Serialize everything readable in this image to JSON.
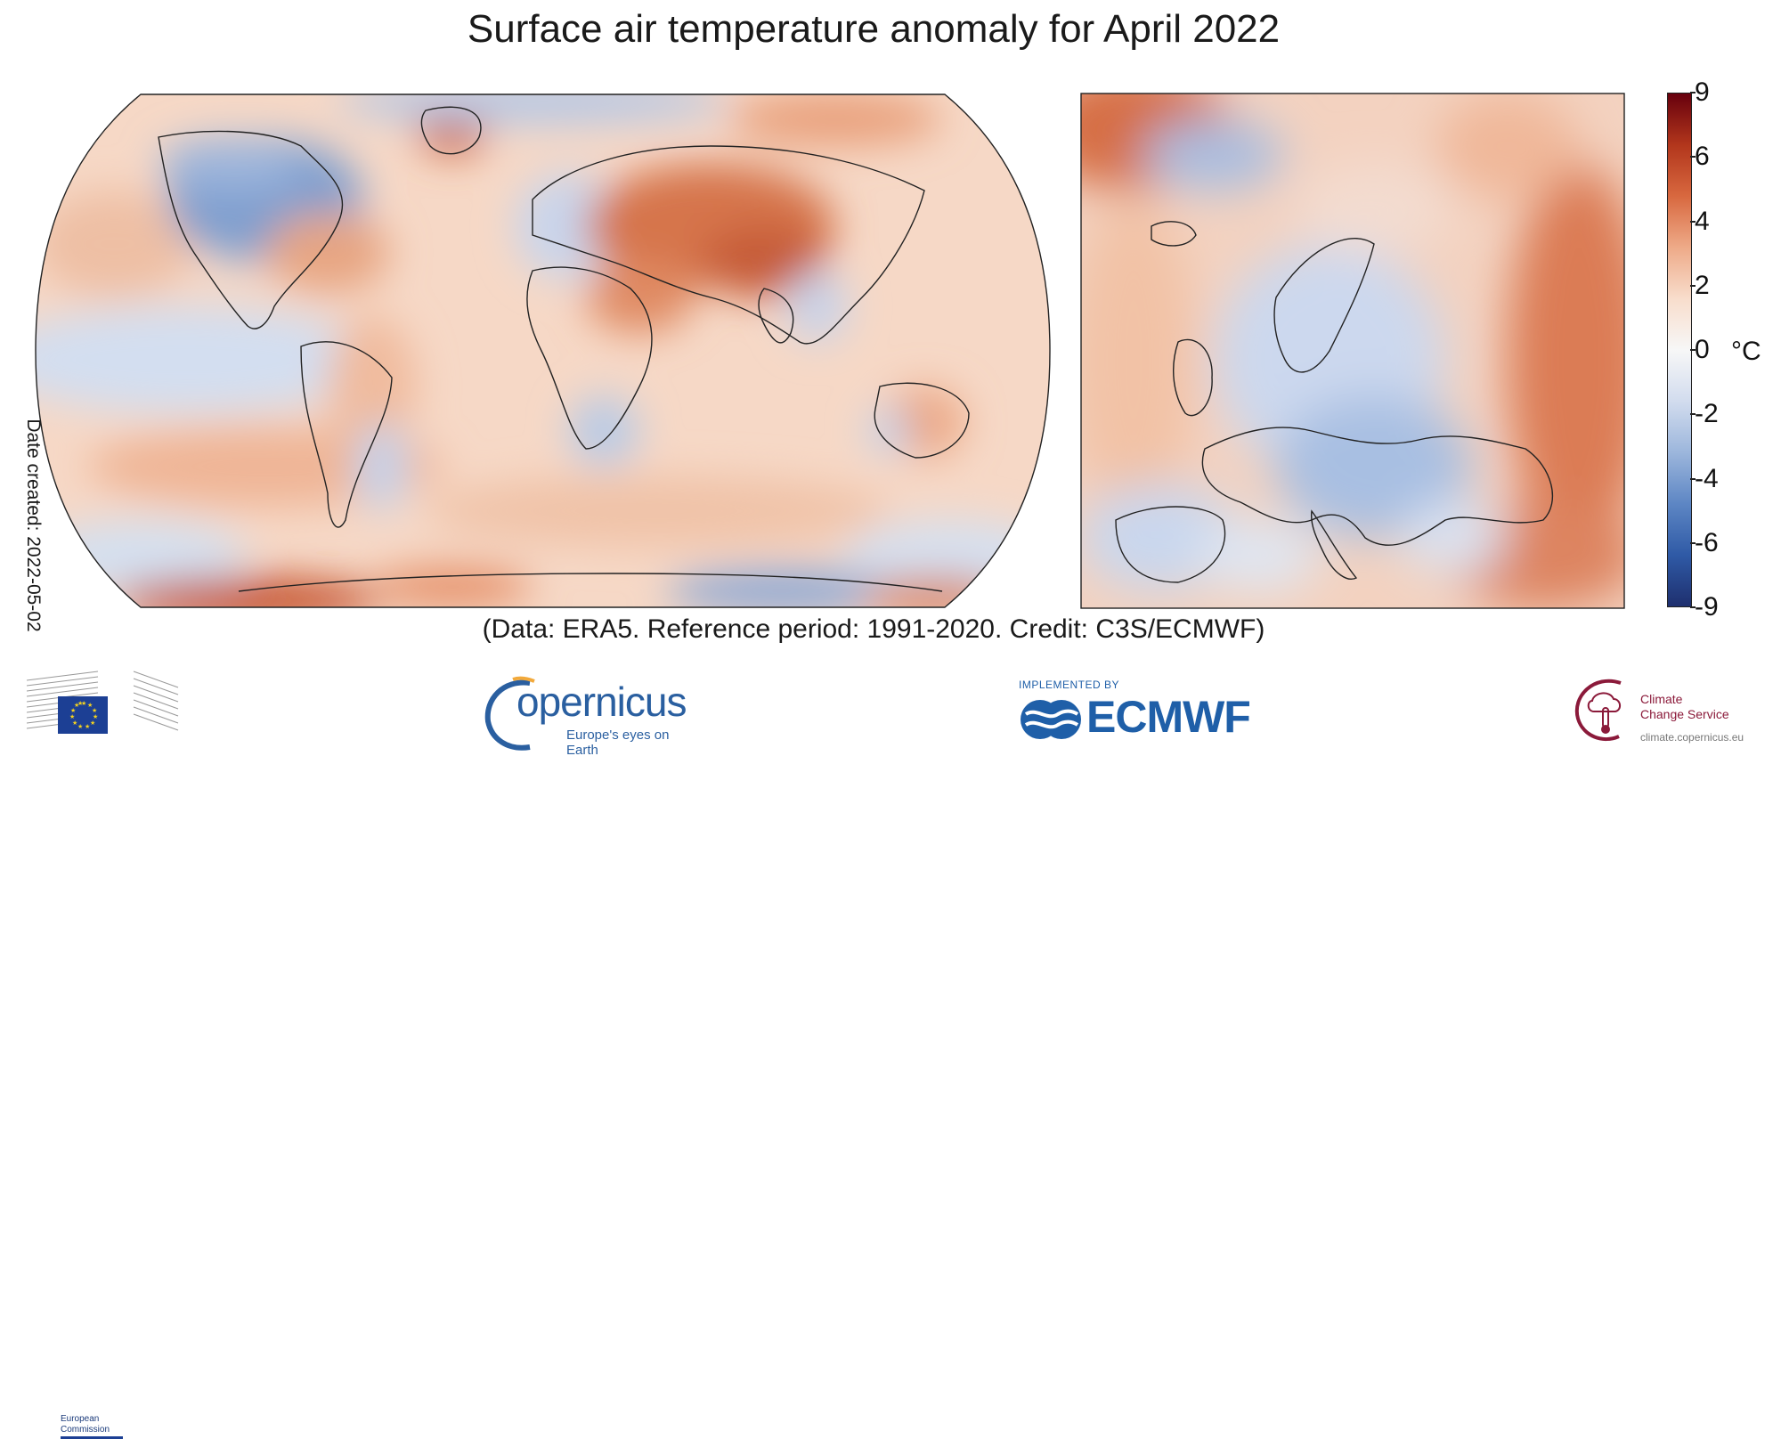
{
  "title": "Surface air temperature anomaly for April 2022",
  "credit": "(Data: ERA5.  Reference period: 1991-2020.  Credit: C3S/ECMWF)",
  "date_created": "Date created: 2022-05-02",
  "colorbar": {
    "ticks": [
      "9",
      "6",
      "4",
      "2",
      "0",
      "-2",
      "-4",
      "-6",
      "-9"
    ],
    "unit": "°C",
    "colors": [
      "#67000d",
      "#b2361c",
      "#d8683f",
      "#eeaa88",
      "#f8ddcc",
      "#f7f7f7",
      "#d2dcee",
      "#9cb6dc",
      "#5d86c4",
      "#2f5aa6",
      "#1e2f6e"
    ]
  },
  "maps": {
    "world": {
      "projection": "Robinson",
      "region": "Global"
    },
    "europe": {
      "region": "Europe"
    }
  },
  "logos": {
    "ec": {
      "caption_line1": "European",
      "caption_line2": "Commission"
    },
    "copernicus": {
      "name": "opernicus",
      "tagline": "Europe's eyes on Earth"
    },
    "ecmwf": {
      "implemented_by": "IMPLEMENTED BY",
      "name": "ECMWF"
    },
    "c3s": {
      "name_line1": "Climate",
      "name_line2": "Change Service",
      "url": "climate.copernicus.eu"
    }
  }
}
